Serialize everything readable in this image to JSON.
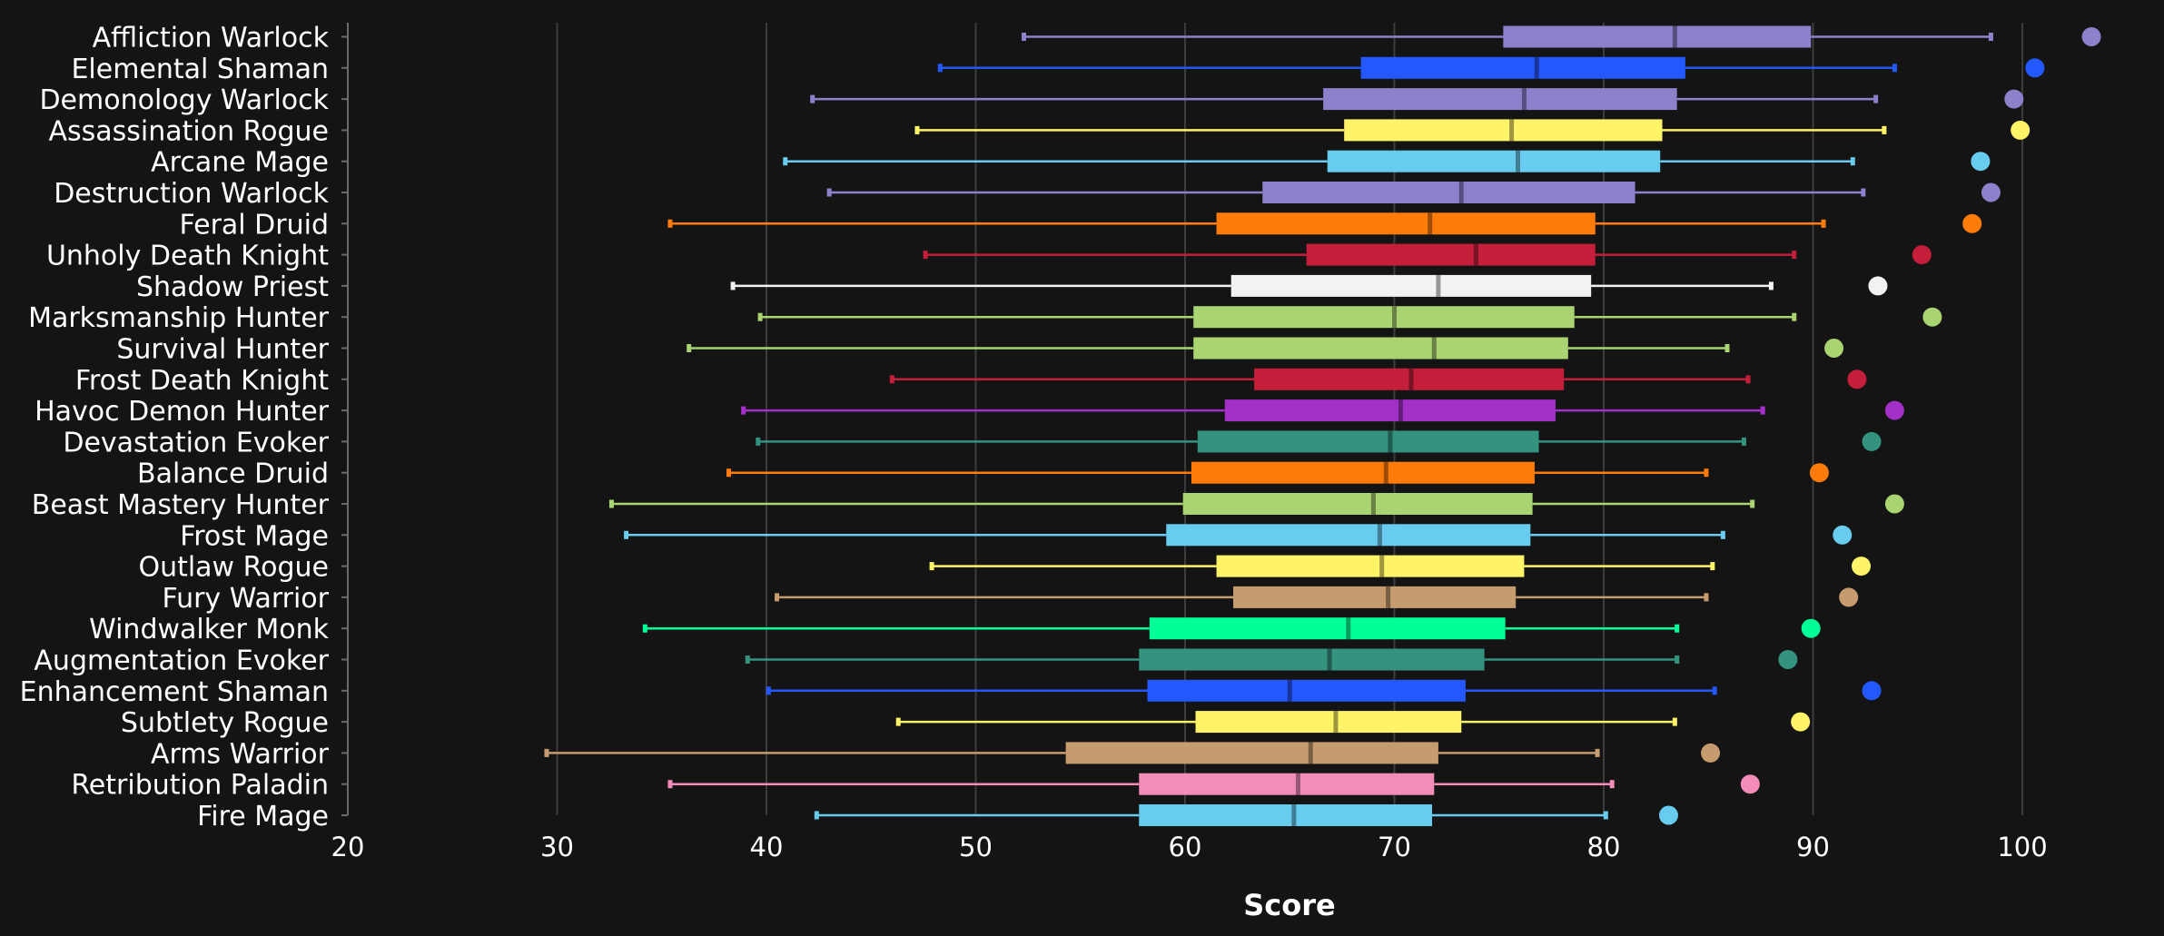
{
  "chart_data": {
    "type": "box",
    "title": "",
    "xlabel": "Score",
    "ylabel": "",
    "xlim": [
      20,
      103
    ],
    "xticks": [
      20,
      30,
      40,
      50,
      60,
      70,
      80,
      90,
      100
    ],
    "grid": true,
    "series": [
      {
        "name": "Affliction Warlock",
        "color": "#8f80cc",
        "min": 52.3,
        "q1": 75.2,
        "median": 83.4,
        "q3": 89.9,
        "max": 98.5,
        "max_point": 103.3
      },
      {
        "name": "Elemental Shaman",
        "color": "#2458ff",
        "min": 48.3,
        "q1": 68.4,
        "median": 76.8,
        "q3": 83.9,
        "max": 93.9,
        "max_point": 100.6
      },
      {
        "name": "Demonology Warlock",
        "color": "#8f80cc",
        "min": 42.2,
        "q1": 66.6,
        "median": 76.2,
        "q3": 83.5,
        "max": 93.0,
        "max_point": 99.6
      },
      {
        "name": "Assassination Rogue",
        "color": "#fff468",
        "min": 47.2,
        "q1": 67.6,
        "median": 75.6,
        "q3": 82.8,
        "max": 93.4,
        "max_point": 99.9
      },
      {
        "name": "Arcane Mage",
        "color": "#68ccef",
        "min": 40.9,
        "q1": 66.8,
        "median": 75.9,
        "q3": 82.7,
        "max": 91.9,
        "max_point": 98.0
      },
      {
        "name": "Destruction Warlock",
        "color": "#8f80cc",
        "min": 43.0,
        "q1": 63.7,
        "median": 73.2,
        "q3": 81.5,
        "max": 92.4,
        "max_point": 98.5
      },
      {
        "name": "Feral Druid",
        "color": "#ff7c0a",
        "min": 35.4,
        "q1": 61.5,
        "median": 71.7,
        "q3": 79.6,
        "max": 90.5,
        "max_point": 97.6
      },
      {
        "name": "Unholy Death Knight",
        "color": "#c41e3a",
        "min": 47.6,
        "q1": 65.8,
        "median": 73.9,
        "q3": 79.6,
        "max": 89.1,
        "max_point": 95.2
      },
      {
        "name": "Shadow Priest",
        "color": "#f2f2f2",
        "min": 38.4,
        "q1": 62.2,
        "median": 72.1,
        "q3": 79.4,
        "max": 88.0,
        "max_point": 93.1
      },
      {
        "name": "Marksmanship Hunter",
        "color": "#aad372",
        "min": 39.7,
        "q1": 60.4,
        "median": 70.0,
        "q3": 78.6,
        "max": 89.1,
        "max_point": 95.7
      },
      {
        "name": "Survival Hunter",
        "color": "#aad372",
        "min": 36.3,
        "q1": 60.4,
        "median": 71.9,
        "q3": 78.3,
        "max": 85.9,
        "max_point": 91.0
      },
      {
        "name": "Frost Death Knight",
        "color": "#c41e3a",
        "min": 46.0,
        "q1": 63.3,
        "median": 70.8,
        "q3": 78.1,
        "max": 86.9,
        "max_point": 92.1
      },
      {
        "name": "Havoc Demon Hunter",
        "color": "#a330c9",
        "min": 38.9,
        "q1": 61.9,
        "median": 70.3,
        "q3": 77.7,
        "max": 87.6,
        "max_point": 93.9
      },
      {
        "name": "Devastation Evoker",
        "color": "#33937f",
        "min": 39.6,
        "q1": 60.6,
        "median": 69.8,
        "q3": 76.9,
        "max": 86.7,
        "max_point": 92.8
      },
      {
        "name": "Balance Druid",
        "color": "#ff7c0a",
        "min": 38.2,
        "q1": 60.3,
        "median": 69.6,
        "q3": 76.7,
        "max": 84.9,
        "max_point": 90.3
      },
      {
        "name": "Beast Mastery Hunter",
        "color": "#aad372",
        "min": 32.6,
        "q1": 59.9,
        "median": 69.0,
        "q3": 76.6,
        "max": 87.1,
        "max_point": 93.9
      },
      {
        "name": "Frost Mage",
        "color": "#68ccef",
        "min": 33.3,
        "q1": 59.1,
        "median": 69.3,
        "q3": 76.5,
        "max": 85.7,
        "max_point": 91.4
      },
      {
        "name": "Outlaw Rogue",
        "color": "#fff468",
        "min": 47.9,
        "q1": 61.5,
        "median": 69.4,
        "q3": 76.2,
        "max": 85.2,
        "max_point": 92.3
      },
      {
        "name": "Fury Warrior",
        "color": "#c69b6d",
        "min": 40.5,
        "q1": 62.3,
        "median": 69.7,
        "q3": 75.8,
        "max": 84.9,
        "max_point": 91.7
      },
      {
        "name": "Windwalker Monk",
        "color": "#00ff98",
        "min": 34.2,
        "q1": 58.3,
        "median": 67.8,
        "q3": 75.3,
        "max": 83.5,
        "max_point": 89.9
      },
      {
        "name": "Augmentation Evoker",
        "color": "#33937f",
        "min": 39.1,
        "q1": 57.8,
        "median": 66.9,
        "q3": 74.3,
        "max": 83.5,
        "max_point": 88.8
      },
      {
        "name": "Enhancement Shaman",
        "color": "#2458ff",
        "min": 40.1,
        "q1": 58.2,
        "median": 65.0,
        "q3": 73.4,
        "max": 85.3,
        "max_point": 92.8
      },
      {
        "name": "Subtlety Rogue",
        "color": "#fff468",
        "min": 46.3,
        "q1": 60.5,
        "median": 67.2,
        "q3": 73.2,
        "max": 83.4,
        "max_point": 89.4
      },
      {
        "name": "Arms Warrior",
        "color": "#c69b6d",
        "min": 29.5,
        "q1": 54.3,
        "median": 66.0,
        "q3": 72.1,
        "max": 79.7,
        "max_point": 85.1
      },
      {
        "name": "Retribution Paladin",
        "color": "#f48cba",
        "min": 35.4,
        "q1": 57.8,
        "median": 65.4,
        "q3": 71.9,
        "max": 80.4,
        "max_point": 87.0
      },
      {
        "name": "Fire Mage",
        "color": "#68ccef",
        "min": 42.4,
        "q1": 57.8,
        "median": 65.2,
        "q3": 71.8,
        "max": 80.1,
        "max_point": 83.1
      }
    ]
  }
}
